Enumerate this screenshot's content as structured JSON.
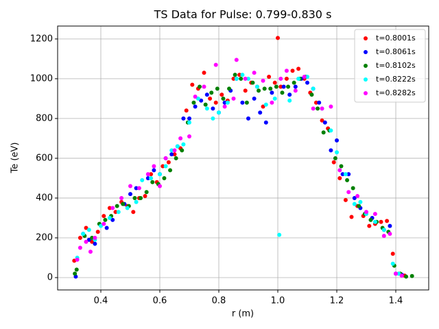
{
  "chart_data": {
    "type": "scatter",
    "title": "TS Data for Pulse: 0.799-0.830 s",
    "xlabel": "r (m)",
    "ylabel": "Te (eV)",
    "xlim": [
      0.2535,
      1.5116
    ],
    "ylim": [
      -62,
      1265
    ],
    "xticks": [
      0.4,
      0.6,
      0.8,
      {
        "value": 1,
        "label": "1.0"
      },
      1.2,
      1.4
    ],
    "yticks": [
      0,
      200,
      400,
      600,
      800,
      1000,
      1200
    ],
    "grid": true,
    "legend": "upper right",
    "series": [
      {
        "name": "t=0.8001s",
        "color": "#ff0000",
        "x": [
          0.31,
          0.33,
          0.35,
          0.37,
          0.39,
          0.41,
          0.43,
          0.45,
          0.47,
          0.49,
          0.51,
          0.53,
          0.55,
          0.57,
          0.59,
          0.61,
          0.63,
          0.65,
          0.67,
          0.69,
          0.71,
          0.73,
          0.75,
          0.77,
          0.79,
          0.81,
          0.83,
          0.85,
          0.87,
          0.89,
          0.91,
          0.93,
          0.95,
          0.97,
          0.99,
          1.0,
          1.01,
          1.03,
          1.05,
          1.07,
          1.09,
          1.11,
          1.13,
          1.15,
          1.17,
          1.19,
          1.21,
          1.23,
          1.25,
          1.27,
          1.29,
          1.31,
          1.33,
          1.35,
          1.37,
          1.39,
          1.41,
          1.43
        ],
        "values": [
          85,
          200,
          250,
          180,
          230,
          310,
          350,
          330,
          380,
          360,
          330,
          400,
          410,
          520,
          480,
          560,
          580,
          620,
          650,
          840,
          970,
          950,
          1030,
          900,
          880,
          920,
          890,
          1000,
          1020,
          940,
          980,
          960,
          860,
          1010,
          980,
          1205,
          960,
          1000,
          1040,
          1050,
          1000,
          930,
          880,
          790,
          750,
          580,
          500,
          390,
          305,
          360,
          310,
          260,
          270,
          280,
          285,
          120,
          20,
          10
        ]
      },
      {
        "name": "t=0.8061s",
        "color": "#0000ff",
        "x": [
          0.315,
          0.34,
          0.36,
          0.38,
          0.42,
          0.44,
          0.48,
          0.5,
          0.52,
          0.56,
          0.58,
          0.6,
          0.62,
          0.64,
          0.66,
          0.68,
          0.7,
          0.72,
          0.74,
          0.76,
          0.78,
          0.8,
          0.82,
          0.84,
          0.86,
          0.88,
          0.9,
          0.92,
          0.94,
          0.96,
          0.98,
          1.02,
          1.04,
          1.06,
          1.08,
          1.1,
          1.12,
          1.14,
          1.16,
          1.18,
          1.2,
          1.22,
          1.24,
          1.26,
          1.28,
          1.32,
          1.36,
          1.38,
          1.4,
          1.42
        ],
        "values": [
          5,
          220,
          190,
          170,
          250,
          290,
          370,
          420,
          450,
          500,
          540,
          520,
          600,
          620,
          660,
          800,
          800,
          860,
          890,
          920,
          850,
          830,
          880,
          940,
          1000,
          880,
          800,
          900,
          830,
          780,
          930,
          960,
          920,
          960,
          1000,
          980,
          950,
          880,
          780,
          640,
          690,
          520,
          520,
          400,
          350,
          300,
          240,
          260,
          20,
          15
        ]
      },
      {
        "name": "t=0.8102s",
        "color": "#008000",
        "x": [
          0.312,
          0.318,
          0.345,
          0.37,
          0.395,
          0.415,
          0.435,
          0.455,
          0.475,
          0.495,
          0.515,
          0.535,
          0.555,
          0.575,
          0.595,
          0.615,
          0.635,
          0.655,
          0.675,
          0.695,
          0.715,
          0.735,
          0.755,
          0.775,
          0.795,
          0.815,
          0.835,
          0.855,
          0.875,
          0.895,
          0.915,
          0.935,
          0.955,
          0.975,
          0.995,
          1.015,
          1.035,
          1.055,
          1.075,
          1.095,
          1.115,
          1.135,
          1.155,
          1.175,
          1.195,
          1.215,
          1.235,
          1.255,
          1.275,
          1.295,
          1.315,
          1.335,
          1.355,
          1.375,
          1.395,
          1.415,
          1.435,
          1.455
        ],
        "values": [
          20,
          40,
          210,
          200,
          270,
          290,
          310,
          360,
          370,
          360,
          400,
          400,
          430,
          480,
          470,
          500,
          540,
          600,
          640,
          780,
          880,
          960,
          870,
          930,
          950,
          900,
          950,
          1020,
          1000,
          880,
          980,
          940,
          950,
          950,
          960,
          930,
          960,
          980,
          1000,
          1010,
          920,
          850,
          730,
          740,
          600,
          560,
          490,
          450,
          360,
          320,
          290,
          280,
          250,
          230,
          60,
          20,
          5,
          8
        ]
      },
      {
        "name": "t=0.8222s",
        "color": "#00ffff",
        "x": [
          0.32,
          0.34,
          0.36,
          0.38,
          0.4,
          0.43,
          0.46,
          0.49,
          0.52,
          0.54,
          0.57,
          0.6,
          0.62,
          0.64,
          0.66,
          0.68,
          0.7,
          0.73,
          0.76,
          0.78,
          0.8,
          0.83,
          0.86,
          0.88,
          0.9,
          0.93,
          0.96,
          0.99,
          1.005,
          1.04,
          1.07,
          1.1,
          1.12,
          1.15,
          1.18,
          1.2,
          1.23,
          1.26,
          1.28,
          1.3,
          1.33,
          1.36,
          1.39,
          1.41
        ],
        "values": [
          100,
          220,
          240,
          190,
          260,
          300,
          330,
          350,
          380,
          490,
          500,
          520,
          560,
          640,
          660,
          670,
          780,
          900,
          850,
          800,
          830,
          880,
          1000,
          1020,
          1000,
          960,
          870,
          900,
          215,
          890,
          1000,
          1010,
          950,
          850,
          740,
          630,
          520,
          370,
          380,
          320,
          280,
          240,
          70,
          20
        ]
      },
      {
        "name": "t=0.8282s",
        "color": "#ff00ff",
        "x": [
          0.32,
          0.33,
          0.35,
          0.365,
          0.38,
          0.41,
          0.44,
          0.47,
          0.5,
          0.53,
          0.56,
          0.58,
          0.6,
          0.62,
          0.65,
          0.67,
          0.7,
          0.72,
          0.75,
          0.79,
          0.82,
          0.85,
          0.86,
          0.89,
          0.92,
          0.95,
          0.98,
          1.01,
          1.03,
          1.06,
          1.09,
          1.12,
          1.15,
          1.18,
          1.21,
          1.24,
          1.27,
          1.3,
          1.33,
          1.36,
          1.38,
          1.4,
          1.42
        ],
        "values": [
          90,
          150,
          180,
          130,
          200,
          270,
          350,
          400,
          460,
          450,
          520,
          560,
          460,
          600,
          640,
          700,
          710,
          910,
          960,
          1070,
          860,
          900,
          1095,
          1000,
          1030,
          990,
          880,
          1000,
          1040,
          940,
          1010,
          850,
          850,
          860,
          540,
          430,
          410,
          330,
          320,
          210,
          220,
          20,
          10
        ]
      }
    ]
  }
}
